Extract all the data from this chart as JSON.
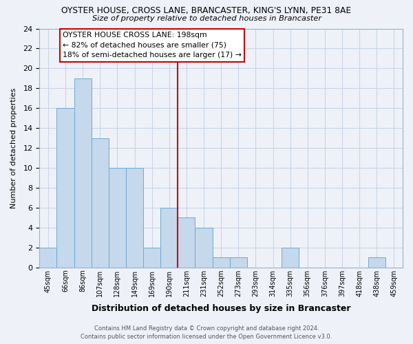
{
  "title1": "OYSTER HOUSE, CROSS LANE, BRANCASTER, KING'S LYNN, PE31 8AE",
  "title2": "Size of property relative to detached houses in Brancaster",
  "xlabel": "Distribution of detached houses by size in Brancaster",
  "ylabel": "Number of detached properties",
  "bin_labels": [
    "45sqm",
    "66sqm",
    "86sqm",
    "107sqm",
    "128sqm",
    "149sqm",
    "169sqm",
    "190sqm",
    "211sqm",
    "231sqm",
    "252sqm",
    "273sqm",
    "293sqm",
    "314sqm",
    "335sqm",
    "356sqm",
    "376sqm",
    "397sqm",
    "418sqm",
    "438sqm",
    "459sqm"
  ],
  "bar_heights": [
    2,
    16,
    19,
    13,
    10,
    10,
    2,
    6,
    5,
    4,
    1,
    1,
    0,
    0,
    2,
    0,
    0,
    0,
    0,
    1,
    0
  ],
  "bar_color": "#c5d8ec",
  "bar_edge_color": "#6aaad4",
  "vline_color": "#cc0000",
  "vline_bar_index": 8,
  "ylim": [
    0,
    24
  ],
  "yticks": [
    0,
    2,
    4,
    6,
    8,
    10,
    12,
    14,
    16,
    18,
    20,
    22,
    24
  ],
  "annotation_title": "OYSTER HOUSE CROSS LANE: 198sqm",
  "annotation_line1": "← 82% of detached houses are smaller (75)",
  "annotation_line2": "18% of semi-detached houses are larger (17) →",
  "annotation_box_facecolor": "#ffffff",
  "annotation_box_edgecolor": "#cc0000",
  "footer1": "Contains HM Land Registry data © Crown copyright and database right 2024.",
  "footer2": "Contains public sector information licensed under the Open Government Licence v3.0.",
  "grid_color": "#c8d4e8",
  "background_color": "#eef2f8",
  "spine_color": "#9ab0cc"
}
